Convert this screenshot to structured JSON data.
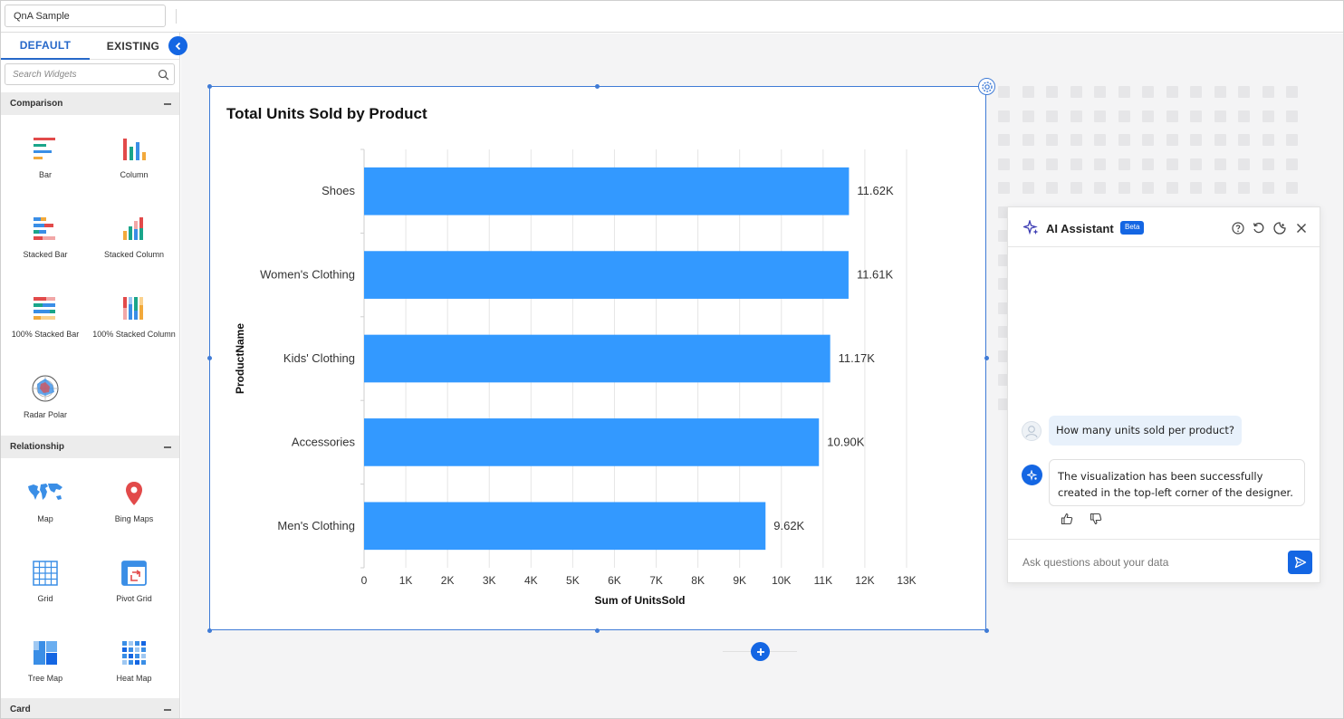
{
  "topbar": {
    "dashboard_name": "QnA Sample"
  },
  "sidebar": {
    "tabs": [
      {
        "label": "DEFAULT",
        "active": true
      },
      {
        "label": "EXISTING",
        "active": false
      }
    ],
    "search_placeholder": "Search Widgets",
    "sections": [
      {
        "title": "Comparison",
        "widgets": [
          {
            "label": "Bar",
            "icon": "bar-chart-icon"
          },
          {
            "label": "Column",
            "icon": "column-chart-icon"
          },
          {
            "label": "Stacked Bar",
            "icon": "stacked-bar-icon"
          },
          {
            "label": "Stacked Column",
            "icon": "stacked-column-icon"
          },
          {
            "label": "100% Stacked Bar",
            "icon": "full-stacked-bar-icon"
          },
          {
            "label": "100% Stacked Column",
            "icon": "full-stacked-column-icon"
          },
          {
            "label": "Radar Polar",
            "icon": "radar-polar-icon"
          }
        ]
      },
      {
        "title": "Relationship",
        "widgets": [
          {
            "label": "Map",
            "icon": "world-map-icon"
          },
          {
            "label": "Bing Maps",
            "icon": "map-pin-icon"
          },
          {
            "label": "Grid",
            "icon": "grid-icon"
          },
          {
            "label": "Pivot Grid",
            "icon": "pivot-grid-icon"
          },
          {
            "label": "Tree Map",
            "icon": "tree-map-icon"
          },
          {
            "label": "Heat Map",
            "icon": "heat-map-icon"
          }
        ]
      },
      {
        "title": "Card",
        "widgets": []
      }
    ]
  },
  "chart_data": {
    "type": "bar",
    "orientation": "horizontal",
    "title": "Total Units Sold by Product",
    "xlabel": "Sum of UnitsSold",
    "ylabel": "ProductName",
    "categories": [
      "Shoes",
      "Women's Clothing",
      "Kids' Clothing",
      "Accessories",
      "Men's Clothing"
    ],
    "values": [
      11620,
      11610,
      11170,
      10900,
      9620
    ],
    "data_labels": [
      "11.62K",
      "11.61K",
      "11.17K",
      "10.90K",
      "9.62K"
    ],
    "xlim": [
      0,
      13000
    ],
    "x_ticks": [
      "0",
      "1K",
      "2K",
      "3K",
      "4K",
      "5K",
      "6K",
      "7K",
      "8K",
      "9K",
      "10K",
      "11K",
      "12K",
      "13K"
    ],
    "bar_color": "#3399ff",
    "grid": true
  },
  "ai_assistant": {
    "title": "AI Assistant",
    "badge": "Beta",
    "messages": [
      {
        "role": "user",
        "text": "How many units sold per product?"
      },
      {
        "role": "assistant",
        "text": "The visualization has been successfully created in the top-left corner of the designer."
      }
    ],
    "input_placeholder": "Ask questions about your data"
  },
  "colors": {
    "accent": "#1466e3",
    "selection": "#3f7bd6"
  }
}
